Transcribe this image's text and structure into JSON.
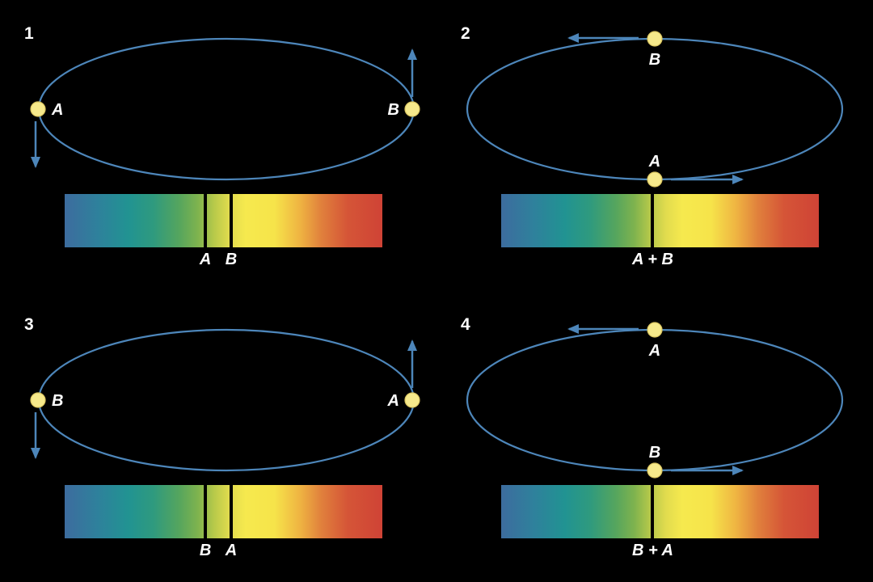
{
  "figure": {
    "colors": {
      "background": "#000000",
      "orbit": "#4d86ba",
      "star_fill": "#f6e98b",
      "star_edge": "#d9c45f",
      "absorption_line": "#000000",
      "label": "#ffffff",
      "spectrum": {
        "blue": "#3d6c9e",
        "teal": "#219392",
        "green": "#55a55e",
        "yellow_green": "#b7c94a",
        "yellow": "#f6e94e",
        "orange": "#efb442",
        "red": "#cf4336"
      }
    }
  },
  "panels": [
    {
      "number": "1",
      "orientation": "horizontal",
      "stars": [
        {
          "label": "A",
          "position": "left",
          "arrow_direction": "down"
        },
        {
          "label": "B",
          "position": "right",
          "arrow_direction": "up"
        }
      ],
      "spectrum_lines": [
        {
          "label": "A",
          "pos_pct": 44.3
        },
        {
          "label": "B",
          "pos_pct": 52.4
        }
      ]
    },
    {
      "number": "2",
      "orientation": "vertical",
      "stars": [
        {
          "label": "B",
          "position": "top",
          "arrow_direction": "left"
        },
        {
          "label": "A",
          "position": "bottom",
          "arrow_direction": "right"
        }
      ],
      "spectrum_lines": [
        {
          "label": "A + B",
          "pos_pct": 47.7
        }
      ]
    },
    {
      "number": "3",
      "orientation": "horizontal",
      "stars": [
        {
          "label": "B",
          "position": "left",
          "arrow_direction": "down"
        },
        {
          "label": "A",
          "position": "right",
          "arrow_direction": "up"
        }
      ],
      "spectrum_lines": [
        {
          "label": "B",
          "pos_pct": 44.3
        },
        {
          "label": "A",
          "pos_pct": 52.4
        }
      ]
    },
    {
      "number": "4",
      "orientation": "vertical",
      "stars": [
        {
          "label": "A",
          "position": "top",
          "arrow_direction": "left"
        },
        {
          "label": "B",
          "position": "bottom",
          "arrow_direction": "right"
        }
      ],
      "spectrum_lines": [
        {
          "label": "B + A",
          "pos_pct": 47.7
        }
      ]
    }
  ]
}
